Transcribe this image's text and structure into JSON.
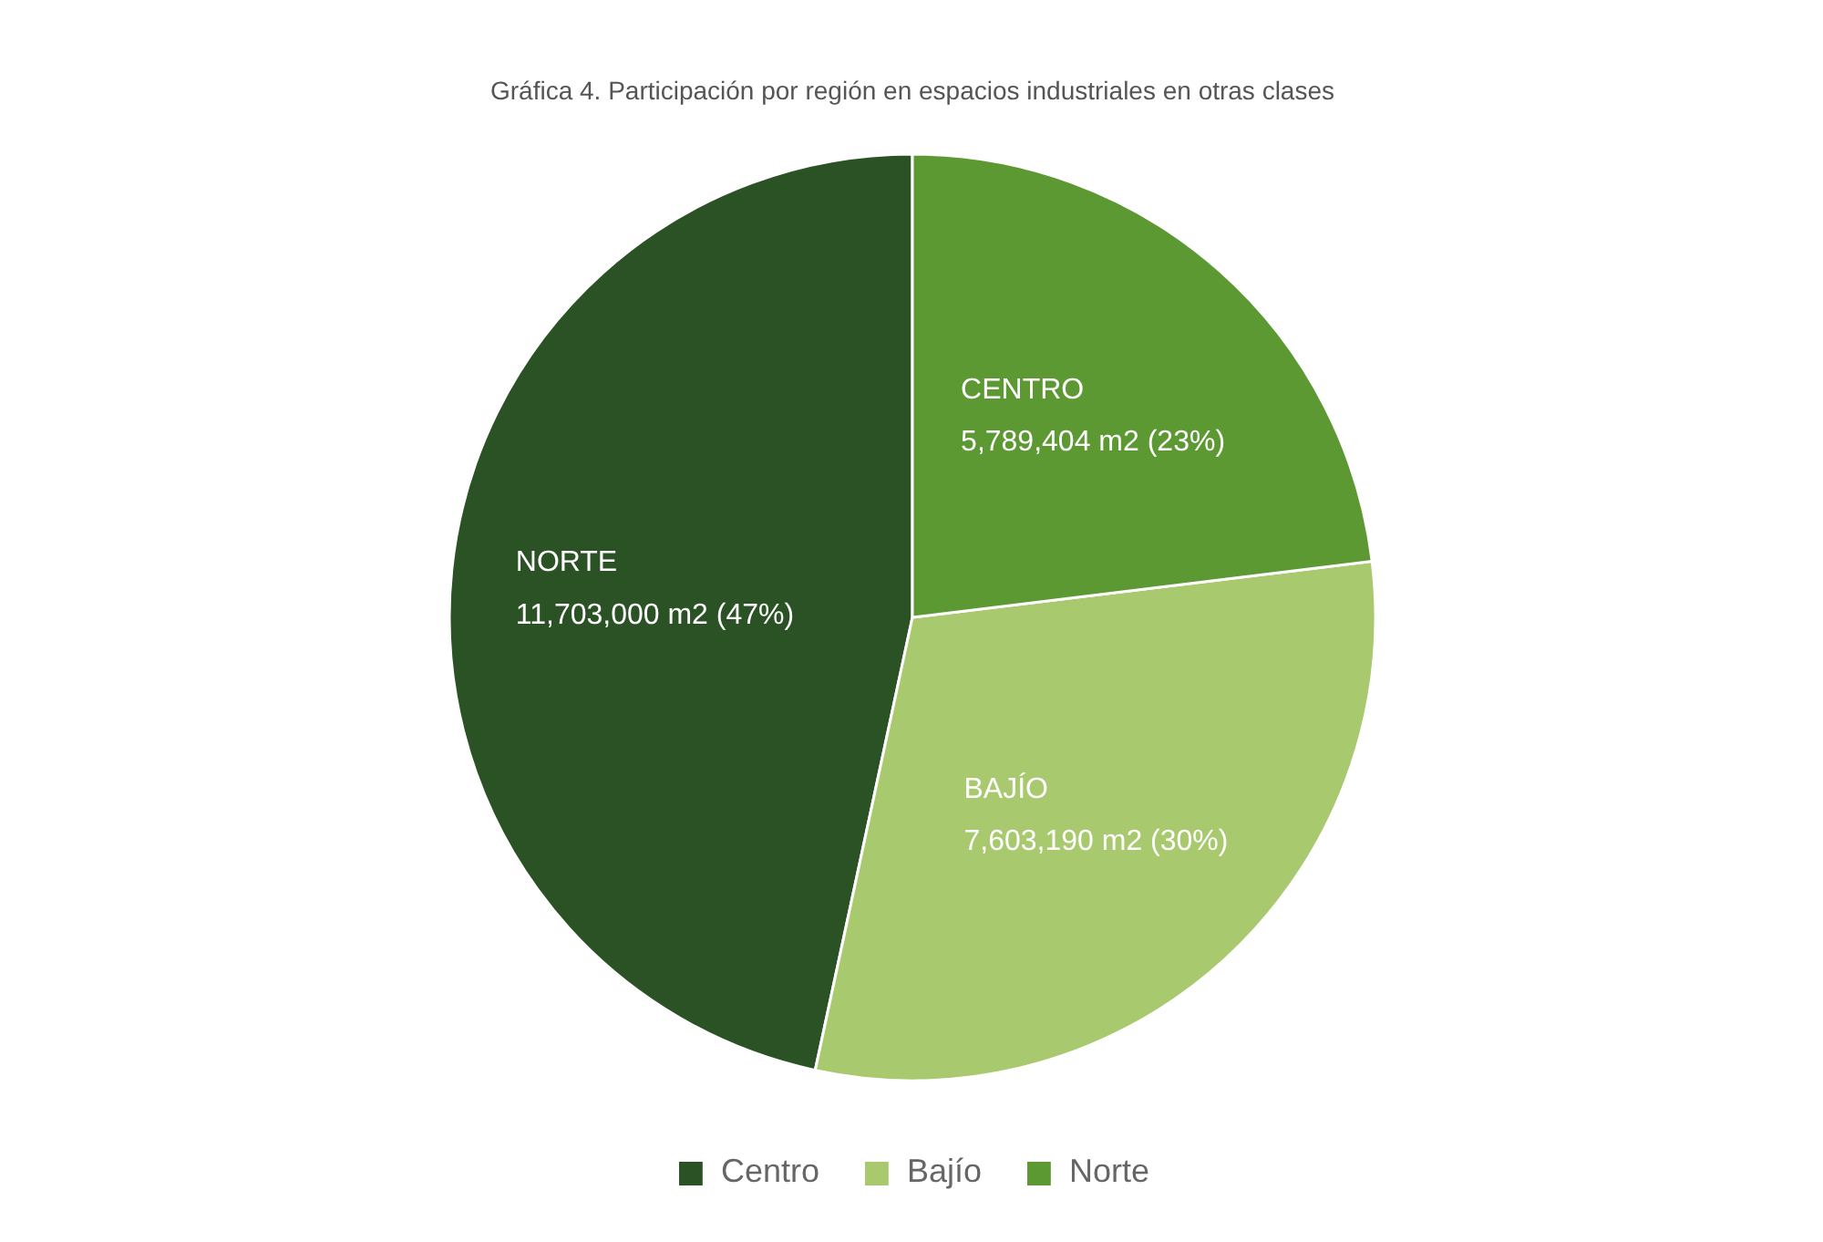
{
  "chart_data": {
    "type": "pie",
    "title": "Gráfica 4. Participación por región en espacios industriales en otras clases",
    "categories": [
      "Centro",
      "Bajío",
      "Norte"
    ],
    "values": [
      11703000,
      7603190,
      5789404
    ],
    "colors": [
      "#2b5224",
      "#a8c96e",
      "#5c9932"
    ],
    "value_labels": [
      "NORTE\n11,703,000 m2 (47%)",
      "BAJÍO\n7,603,190 m2 (30%)",
      "CENTRO\n5,789,404 m2 (23%)"
    ],
    "legend": "bottom"
  }
}
